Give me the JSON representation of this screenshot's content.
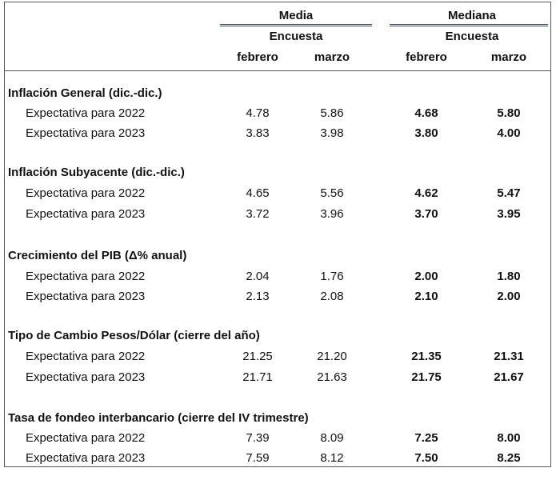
{
  "header": {
    "groups": [
      {
        "title": "Media",
        "subtitle": "Encuesta",
        "columns": [
          "febrero",
          "marzo"
        ]
      },
      {
        "title": "Mediana",
        "subtitle": "Encuesta",
        "columns": [
          "febrero",
          "marzo"
        ]
      }
    ]
  },
  "sections": [
    {
      "title": "Inflación General (dic.-dic.)",
      "rows": [
        {
          "label": "Expectativa para 2022",
          "values": [
            "4.78",
            "5.86",
            "4.68",
            "5.80"
          ]
        },
        {
          "label": "Expectativa para 2023",
          "values": [
            "3.83",
            "3.98",
            "3.80",
            "4.00"
          ]
        }
      ]
    },
    {
      "title": "Inflación Subyacente (dic.-dic.)",
      "rows": [
        {
          "label": "Expectativa para 2022",
          "values": [
            "4.65",
            "5.56",
            "4.62",
            "5.47"
          ]
        },
        {
          "label": "Expectativa para 2023",
          "values": [
            "3.72",
            "3.96",
            "3.70",
            "3.95"
          ]
        }
      ]
    },
    {
      "title": "Crecimiento del PIB (Δ% anual)",
      "rows": [
        {
          "label": "Expectativa para 2022",
          "values": [
            "2.04",
            "1.76",
            "2.00",
            "1.80"
          ]
        },
        {
          "label": "Expectativa para 2023",
          "values": [
            "2.13",
            "2.08",
            "2.10",
            "2.00"
          ]
        }
      ]
    },
    {
      "title": "Tipo de Cambio Pesos/Dólar (cierre del año)",
      "rows": [
        {
          "label": "Expectativa para 2022",
          "values": [
            "21.25",
            "21.20",
            "21.35",
            "21.31"
          ]
        },
        {
          "label": "Expectativa para 2023",
          "values": [
            "21.71",
            "21.63",
            "21.75",
            "21.67"
          ]
        }
      ]
    },
    {
      "title": "Tasa de fondeo interbancario (cierre del IV trimestre)",
      "rows": [
        {
          "label": "Expectativa para 2022",
          "values": [
            "7.39",
            "8.09",
            "7.25",
            "8.00"
          ]
        },
        {
          "label": "Expectativa para 2023",
          "values": [
            "7.59",
            "8.12",
            "7.50",
            "8.25"
          ]
        }
      ]
    }
  ]
}
